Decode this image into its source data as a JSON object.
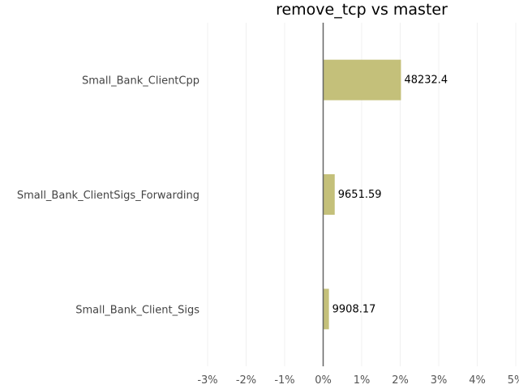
{
  "chart_data": {
    "type": "bar",
    "orientation": "horizontal",
    "title": "remove_tcp vs master",
    "xlabel": "",
    "ylabel": "",
    "categories": [
      "Small_Bank_ClientCpp",
      "Small_Bank_ClientSigs_Forwarding",
      "Small_Bank_Client_Sigs"
    ],
    "values": [
      2.02,
      0.3,
      0.15
    ],
    "value_unit": "%",
    "data_labels": [
      "48232.4",
      "9651.59",
      "9908.17"
    ],
    "xlim": [
      -3,
      5
    ],
    "xticks": [
      -3,
      -2,
      -1,
      0,
      1,
      2,
      3,
      4,
      5
    ],
    "xtick_labels": [
      "-3%",
      "-2%",
      "-1%",
      "0%",
      "1%",
      "2%",
      "3%",
      "4%",
      "5%"
    ],
    "bar_color": "#c4c07a",
    "grid": true
  }
}
